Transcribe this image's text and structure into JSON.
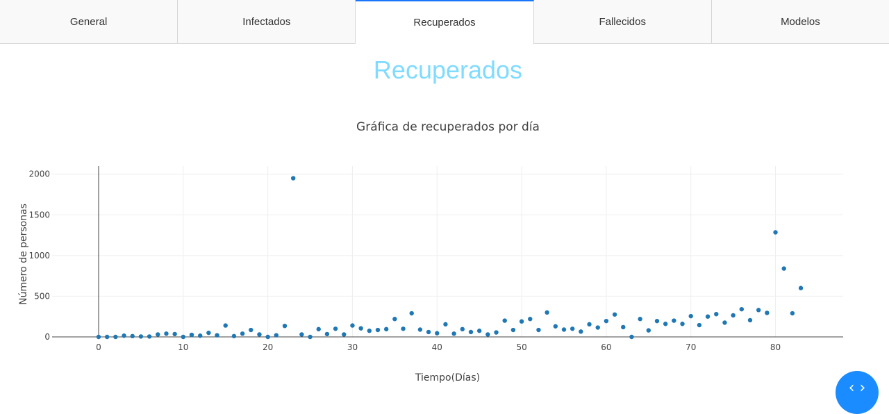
{
  "tabs": [
    {
      "label": "General"
    },
    {
      "label": "Infectados"
    },
    {
      "label": "Recuperados",
      "active": true
    },
    {
      "label": "Fallecidos"
    },
    {
      "label": "Modelos"
    }
  ],
  "page_title": "Recuperados",
  "colors": {
    "accent": "#7fdbff",
    "marker": "#1f77b4",
    "tab_active": "#1975fa",
    "fab": "#1a8cff"
  },
  "fab": {
    "icon": "code-icon",
    "label": "‹ ›"
  },
  "chart_data": {
    "type": "scatter",
    "title": "Gráfica de recuperados por día",
    "xlabel": "Tiempo(Días)",
    "ylabel": "Número de personas",
    "xlim": [
      -5.5,
      88
    ],
    "ylim": [
      0,
      2100
    ],
    "xticks": [
      0,
      10,
      20,
      30,
      40,
      50,
      60,
      70,
      80
    ],
    "yticks": [
      0,
      500,
      1000,
      1500,
      2000
    ],
    "grid": true,
    "series": [
      {
        "x": [
          0,
          1,
          2,
          3,
          4,
          5,
          6,
          7,
          8,
          9,
          10,
          11,
          12,
          13,
          14,
          15,
          16,
          17,
          18,
          19,
          20,
          21,
          22,
          23,
          24,
          25,
          26,
          27,
          28,
          29,
          30,
          31,
          32,
          33,
          34,
          35,
          36,
          37,
          38,
          39,
          40,
          41,
          42,
          43,
          44,
          45,
          46,
          47,
          48,
          49,
          50,
          51,
          52,
          53,
          54,
          55,
          56,
          57,
          58,
          59,
          60,
          61,
          62,
          63,
          64,
          65,
          66,
          67,
          68,
          69,
          70,
          71,
          72,
          73,
          74,
          75,
          76,
          77,
          78,
          79,
          80,
          81,
          82,
          83
        ],
        "y": [
          0,
          0,
          0,
          15,
          10,
          5,
          5,
          30,
          40,
          35,
          0,
          25,
          15,
          50,
          20,
          140,
          10,
          40,
          85,
          30,
          0,
          20,
          135,
          1950,
          30,
          0,
          95,
          35,
          100,
          30,
          140,
          105,
          75,
          85,
          95,
          220,
          100,
          290,
          90,
          60,
          45,
          155,
          40,
          95,
          60,
          75,
          30,
          55,
          200,
          85,
          190,
          220,
          85,
          300,
          130,
          90,
          100,
          65,
          155,
          115,
          195,
          275,
          120,
          0,
          220,
          80,
          195,
          160,
          200,
          160,
          255,
          145,
          250,
          280,
          175,
          265,
          340,
          205,
          330,
          295,
          1285,
          840,
          290,
          600
        ]
      }
    ]
  }
}
